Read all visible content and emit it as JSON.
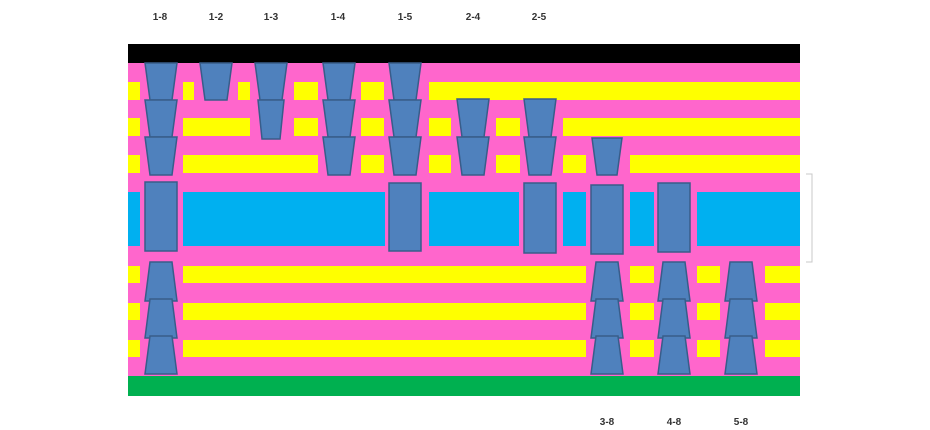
{
  "colors": {
    "background": "#ffffff",
    "top_plane": "#000000",
    "bottom_plane": "#00b050",
    "dielectric": "#ff66cc",
    "trace": "#ffff00",
    "core": "#00b0f0",
    "via_fill": "#4f81bd",
    "via_stroke": "#385d8a",
    "bracket": "#c8c8c8"
  },
  "top_labels": [
    "1-8",
    "1-2",
    "1-3",
    "1-4",
    "1-5",
    "2-4",
    "2-5"
  ],
  "bottom_labels": [
    "3-8",
    "4-8",
    "5-8"
  ]
}
